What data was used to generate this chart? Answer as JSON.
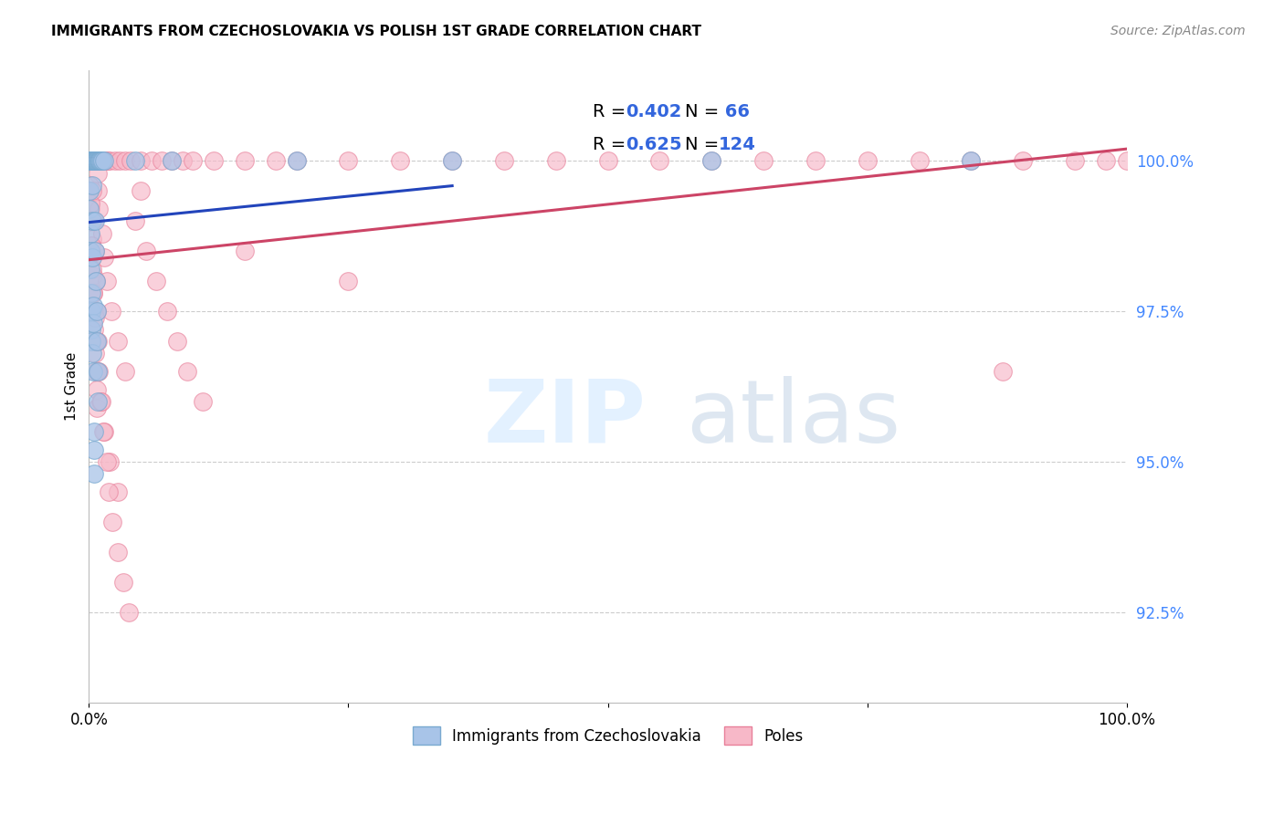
{
  "title": "IMMIGRANTS FROM CZECHOSLOVAKIA VS POLISH 1ST GRADE CORRELATION CHART",
  "source": "Source: ZipAtlas.com",
  "ylabel": "1st Grade",
  "ylabel_right_ticks": [
    100.0,
    97.5,
    95.0,
    92.5
  ],
  "ylabel_right_labels": [
    "100.0%",
    "97.5%",
    "95.0%",
    "92.5%"
  ],
  "xlim": [
    0.0,
    100.0
  ],
  "ylim": [
    91.0,
    101.5
  ],
  "legend_label_blue": "Immigrants from Czechoslovakia",
  "legend_label_pink": "Poles",
  "R_blue": 0.402,
  "N_blue": 66,
  "R_pink": 0.625,
  "N_pink": 124,
  "blue_color": "#a8c4e8",
  "blue_edge": "#7aaad0",
  "pink_color": "#f7b8c8",
  "pink_edge": "#e8809a",
  "blue_line_color": "#2244bb",
  "pink_line_color": "#cc4466",
  "blue_scatter_x": [
    0.05,
    0.08,
    0.1,
    0.12,
    0.15,
    0.18,
    0.2,
    0.22,
    0.25,
    0.28,
    0.3,
    0.32,
    0.35,
    0.38,
    0.4,
    0.42,
    0.45,
    0.48,
    0.5,
    0.55,
    0.6,
    0.65,
    0.7,
    0.75,
    0.8,
    0.85,
    0.9,
    0.95,
    1.0,
    1.05,
    1.1,
    1.2,
    1.3,
    1.5,
    0.06,
    0.09,
    0.11,
    0.14,
    0.16,
    0.19,
    0.21,
    0.24,
    0.26,
    0.29,
    0.31,
    0.34,
    0.36,
    0.39,
    0.41,
    0.44,
    0.46,
    0.49,
    0.52,
    0.58,
    0.62,
    0.68,
    0.72,
    0.78,
    0.82,
    0.88,
    4.5,
    8.0,
    20.0,
    35.0,
    60.0,
    85.0
  ],
  "blue_scatter_y": [
    100.0,
    100.0,
    100.0,
    100.0,
    100.0,
    100.0,
    100.0,
    100.0,
    100.0,
    100.0,
    100.0,
    100.0,
    100.0,
    100.0,
    100.0,
    100.0,
    100.0,
    100.0,
    100.0,
    100.0,
    100.0,
    100.0,
    100.0,
    100.0,
    100.0,
    100.0,
    100.0,
    100.0,
    100.0,
    100.0,
    100.0,
    100.0,
    100.0,
    100.0,
    99.5,
    99.2,
    98.8,
    98.5,
    98.2,
    97.8,
    97.5,
    97.2,
    97.0,
    96.8,
    99.6,
    99.0,
    98.4,
    97.6,
    97.3,
    96.5,
    95.5,
    95.2,
    94.8,
    99.0,
    98.5,
    98.0,
    97.5,
    97.0,
    96.5,
    96.0,
    100.0,
    100.0,
    100.0,
    100.0,
    100.0,
    100.0
  ],
  "pink_scatter_x": [
    0.05,
    0.1,
    0.15,
    0.2,
    0.25,
    0.3,
    0.35,
    0.4,
    0.45,
    0.5,
    0.55,
    0.6,
    0.65,
    0.7,
    0.75,
    0.8,
    0.85,
    0.9,
    0.95,
    1.0,
    1.1,
    1.2,
    1.4,
    1.6,
    1.8,
    2.0,
    2.5,
    3.0,
    3.5,
    4.0,
    5.0,
    6.0,
    7.0,
    8.0,
    9.0,
    10.0,
    12.0,
    15.0,
    18.0,
    20.0,
    25.0,
    30.0,
    35.0,
    40.0,
    45.0,
    50.0,
    55.0,
    60.0,
    65.0,
    70.0,
    75.0,
    80.0,
    85.0,
    90.0,
    95.0,
    98.0,
    100.0,
    0.12,
    0.18,
    0.22,
    0.28,
    0.32,
    0.38,
    0.42,
    0.48,
    0.52,
    0.58,
    0.62,
    0.68,
    0.72,
    0.78,
    0.82,
    0.88,
    0.92,
    1.3,
    1.5,
    1.7,
    2.2,
    2.8,
    3.5,
    0.08,
    0.14,
    0.19,
    0.26,
    0.33,
    0.44,
    0.56,
    0.72,
    0.88,
    1.1,
    1.5,
    2.0,
    2.8,
    0.36,
    0.46,
    0.56,
    0.66,
    0.76,
    0.86,
    0.96,
    1.2,
    1.4,
    1.7,
    1.9,
    2.3,
    2.8,
    3.3,
    3.8,
    4.5,
    5.5,
    6.5,
    7.5,
    8.5,
    9.5,
    11.0,
    5.0,
    15.0,
    25.0,
    88.0
  ],
  "pink_scatter_y": [
    100.0,
    100.0,
    100.0,
    100.0,
    100.0,
    100.0,
    100.0,
    100.0,
    100.0,
    100.0,
    100.0,
    100.0,
    100.0,
    100.0,
    100.0,
    100.0,
    100.0,
    100.0,
    100.0,
    100.0,
    100.0,
    100.0,
    100.0,
    100.0,
    100.0,
    100.0,
    100.0,
    100.0,
    100.0,
    100.0,
    100.0,
    100.0,
    100.0,
    100.0,
    100.0,
    100.0,
    100.0,
    100.0,
    100.0,
    100.0,
    100.0,
    100.0,
    100.0,
    100.0,
    100.0,
    100.0,
    100.0,
    100.0,
    100.0,
    100.0,
    100.0,
    100.0,
    100.0,
    100.0,
    100.0,
    100.0,
    100.0,
    99.5,
    99.2,
    99.0,
    98.7,
    98.4,
    98.1,
    97.8,
    97.5,
    97.2,
    97.0,
    96.8,
    96.5,
    96.2,
    95.9,
    99.8,
    99.5,
    99.2,
    98.8,
    98.4,
    98.0,
    97.5,
    97.0,
    96.5,
    99.6,
    99.3,
    99.0,
    98.6,
    98.2,
    97.8,
    97.4,
    97.0,
    96.5,
    96.0,
    95.5,
    95.0,
    94.5,
    99.5,
    99.0,
    98.5,
    98.0,
    97.5,
    97.0,
    96.5,
    96.0,
    95.5,
    95.0,
    94.5,
    94.0,
    93.5,
    93.0,
    92.5,
    99.0,
    98.5,
    98.0,
    97.5,
    97.0,
    96.5,
    96.0,
    99.5,
    98.5,
    98.0,
    96.5
  ]
}
